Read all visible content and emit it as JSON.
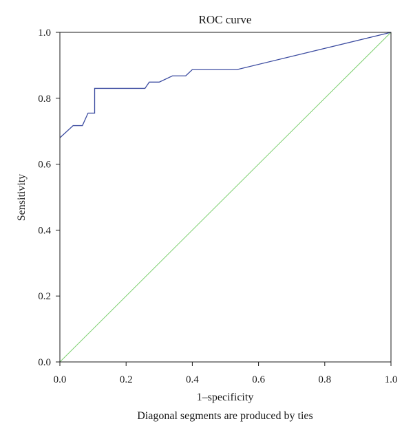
{
  "chart_data": {
    "type": "line",
    "title": "ROC curve",
    "xlabel": "1–specificity",
    "ylabel": "Sensitivity",
    "footnote": "Diagonal segments are produced by ties",
    "xlim": [
      0,
      1
    ],
    "ylim": [
      0,
      1
    ],
    "x_ticks": [
      "0.0",
      "0.2",
      "0.4",
      "0.6",
      "0.8",
      "1.0"
    ],
    "y_ticks": [
      "0.0",
      "0.2",
      "0.4",
      "0.6",
      "0.8",
      "1.0"
    ],
    "grid": false,
    "series": [
      {
        "color": "#3b4ba0",
        "points": [
          [
            0.0,
            0.68
          ],
          [
            0.04,
            0.717
          ],
          [
            0.068,
            0.717
          ],
          [
            0.085,
            0.755
          ],
          [
            0.105,
            0.755
          ],
          [
            0.105,
            0.83
          ],
          [
            0.257,
            0.83
          ],
          [
            0.27,
            0.849
          ],
          [
            0.3,
            0.849
          ],
          [
            0.34,
            0.868
          ],
          [
            0.38,
            0.868
          ],
          [
            0.4,
            0.887
          ],
          [
            0.535,
            0.887
          ],
          [
            1.0,
            1.0
          ]
        ]
      },
      {
        "color": "#7ccf6e",
        "points": [
          [
            0.0,
            0.0
          ],
          [
            1.0,
            1.0
          ]
        ]
      }
    ]
  }
}
